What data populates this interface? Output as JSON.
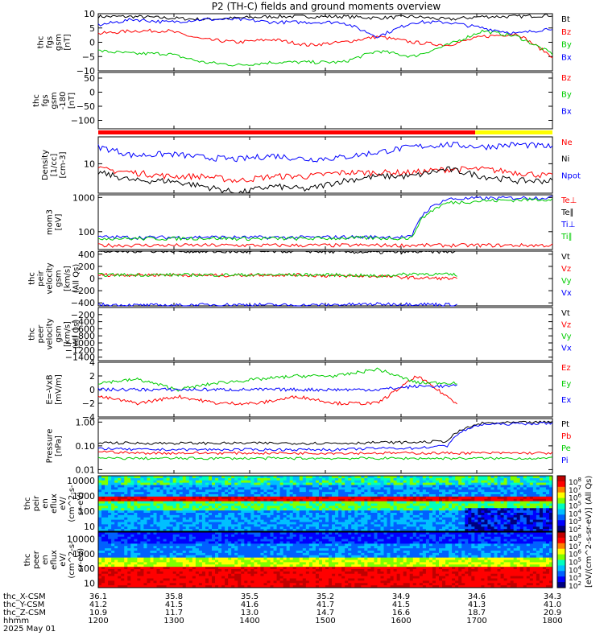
{
  "title": "P2 (TH-C) fields and ground moments overview",
  "chart_data": [
    {
      "type": "line",
      "panel": "fgs-gsm",
      "ylabel": [
        "thc",
        "fgs",
        "gsm",
        "[nT]"
      ],
      "ylim": [
        -10,
        10
      ],
      "yticks": [
        10,
        5,
        0,
        -5,
        -10
      ],
      "series": [
        {
          "name": "Bt",
          "color": "#000000",
          "values": [
            9,
            9,
            8.5,
            8,
            8.5,
            9,
            9,
            9,
            8.5,
            9,
            8,
            9,
            9,
            9.5
          ]
        },
        {
          "name": "Bz",
          "color": "#ff0000",
          "values": [
            3,
            4,
            4,
            1,
            0,
            1,
            -1,
            0,
            2,
            0,
            -1,
            2,
            3,
            -5
          ]
        },
        {
          "name": "By",
          "color": "#00cc00",
          "values": [
            -3,
            -4,
            -4,
            -7,
            -8,
            -7,
            -7,
            -7,
            -3,
            -5,
            -1,
            4,
            2,
            -4
          ]
        },
        {
          "name": "Bx",
          "color": "#0000ff",
          "values": [
            6,
            8,
            7,
            8,
            8,
            7,
            7,
            7,
            2,
            7,
            7,
            5,
            3,
            5
          ]
        }
      ]
    },
    {
      "type": "line",
      "panel": "fgs-gsm-180",
      "ylabel": [
        "thc",
        "fgs",
        "gsm",
        "-180",
        "[nT]"
      ],
      "ylim": [
        -130,
        70
      ],
      "yticks": [
        50,
        0,
        -50,
        -100
      ],
      "series": [
        {
          "name": "Bz",
          "color": "#ff0000",
          "values": []
        },
        {
          "name": "By",
          "color": "#00cc00",
          "values": []
        },
        {
          "name": "Bx",
          "color": "#0000ff",
          "values": []
        }
      ]
    },
    {
      "type": "line",
      "panel": "density",
      "ylabel": [
        "Density",
        "[1/cc]",
        "[cm-3]"
      ],
      "ylim": [
        3,
        30
      ],
      "log": true,
      "yticks": [
        10
      ],
      "series": [
        {
          "name": "Ne",
          "color": "#ff0000",
          "values": [
            8,
            7,
            6,
            6,
            5,
            6,
            6,
            7,
            7,
            7,
            8,
            8,
            7,
            6
          ]
        },
        {
          "name": "Ni",
          "color": "#000000",
          "values": [
            7,
            5,
            5,
            4,
            3,
            4,
            3.5,
            5,
            6,
            6,
            8,
            6,
            5,
            5
          ]
        },
        {
          "name": "Npot",
          "color": "#0000ff",
          "values": [
            20,
            14,
            15,
            13,
            12,
            14,
            12,
            13,
            16,
            20,
            22,
            20,
            22,
            20
          ]
        }
      ]
    },
    {
      "type": "line",
      "panel": "temperature",
      "ylabel": [
        "mom3",
        "[eV]"
      ],
      "ylim": [
        30,
        1200
      ],
      "log": true,
      "yticks": [
        1000,
        100
      ],
      "series": [
        {
          "name": "Te⊥",
          "color": "#ff0000",
          "values": [
            40,
            40,
            40,
            40,
            40,
            40,
            40,
            40,
            40,
            40,
            40,
            40,
            40,
            40
          ]
        },
        {
          "name": "Te∥",
          "color": "#000000",
          "values": []
        },
        {
          "name": "Ti⊥",
          "color": "#0000ff",
          "values": [
            70,
            68,
            68,
            70,
            68,
            68,
            68,
            70,
            70,
            70,
            900,
            950,
            980,
            1000
          ]
        },
        {
          "name": "Ti∥",
          "color": "#00cc00",
          "values": [
            65,
            63,
            63,
            65,
            63,
            63,
            63,
            65,
            65,
            65,
            700,
            800,
            850,
            900
          ]
        }
      ]
    },
    {
      "type": "line",
      "panel": "peir-velocity",
      "ylabel": [
        "thc",
        "peir",
        "velocity",
        "gsm",
        "[km/s]",
        "(All Qs)"
      ],
      "ylim": [
        -450,
        450
      ],
      "yticks": [
        400,
        200,
        0,
        -200,
        -400
      ],
      "series": [
        {
          "name": "Vt",
          "color": "#000000",
          "values": [
            440,
            450,
            450,
            440,
            440,
            450,
            440,
            430,
            440,
            440
          ]
        },
        {
          "name": "Vz",
          "color": "#ff0000",
          "values": [
            60,
            60,
            60,
            50,
            60,
            60,
            40,
            40,
            10,
            0
          ]
        },
        {
          "name": "Vy",
          "color": "#00cc00",
          "values": [
            60,
            60,
            60,
            60,
            60,
            60,
            60,
            40,
            80,
            60
          ]
        },
        {
          "name": "Vx",
          "color": "#0000ff",
          "values": [
            -430,
            -440,
            -440,
            -430,
            -430,
            -440,
            -430,
            -420,
            -420,
            -430
          ]
        }
      ]
    },
    {
      "type": "line",
      "panel": "peer-velocity",
      "ylabel": [
        "thc",
        "peer",
        "velocity",
        "gsm",
        "[km/s]",
        "(All Qs)"
      ],
      "ylim": [
        -1500,
        0
      ],
      "yticks": [
        -200,
        -400,
        -600,
        -800,
        -1000,
        -1200,
        -1400
      ],
      "series": [
        {
          "name": "Vt",
          "color": "#000000",
          "values": []
        },
        {
          "name": "Vz",
          "color": "#ff0000",
          "values": []
        },
        {
          "name": "Vy",
          "color": "#00cc00",
          "values": []
        },
        {
          "name": "Vx",
          "color": "#0000ff",
          "values": []
        }
      ]
    },
    {
      "type": "line",
      "panel": "efield",
      "ylabel": [
        "E=-VxB",
        "[mV/m]"
      ],
      "ylim": [
        -4,
        4
      ],
      "yticks": [
        4,
        2,
        0,
        -2,
        -4
      ],
      "series": [
        {
          "name": "Ez",
          "color": "#ff0000",
          "values": [
            -1,
            -2,
            -1,
            -2,
            -2,
            -1,
            -2,
            -2,
            2,
            -2
          ]
        },
        {
          "name": "Ey",
          "color": "#00cc00",
          "values": [
            1,
            1.5,
            0,
            1,
            1.5,
            2,
            2,
            3,
            1,
            1
          ]
        },
        {
          "name": "Ex",
          "color": "#0000ff",
          "values": [
            0,
            0,
            0,
            0,
            0,
            0,
            0,
            0,
            0.5,
            0.5
          ]
        }
      ]
    },
    {
      "type": "line",
      "panel": "pressure",
      "ylabel": [
        "Pressure",
        "[nPa]"
      ],
      "ylim": [
        0.007,
        1.4
      ],
      "log": true,
      "yticks": [
        1.0,
        0.1,
        0.01
      ],
      "ytick_labels": [
        "1.00",
        "0.10",
        "0.01"
      ],
      "series": [
        {
          "name": "Pt",
          "color": "#000000",
          "values": [
            0.14,
            0.13,
            0.13,
            0.13,
            0.13,
            0.13,
            0.13,
            0.13,
            0.14,
            0.14,
            0.16,
            0.9,
            0.95,
            1.0
          ]
        },
        {
          "name": "Pb",
          "color": "#ff0000",
          "values": [
            0.06,
            0.05,
            0.05,
            0.05,
            0.05,
            0.05,
            0.05,
            0.05,
            0.05,
            0.05,
            0.05,
            0.05,
            0.05,
            0.05
          ]
        },
        {
          "name": "Pe",
          "color": "#00cc00",
          "values": [
            0.03,
            0.03,
            0.03,
            0.03,
            0.03,
            0.03,
            0.03,
            0.03,
            0.03,
            0.03,
            0.03,
            0.03,
            0.03,
            0.03
          ]
        },
        {
          "name": "Pi",
          "color": "#0000ff",
          "values": [
            0.08,
            0.07,
            0.07,
            0.07,
            0.07,
            0.07,
            0.07,
            0.07,
            0.08,
            0.08,
            0.1,
            0.8,
            0.85,
            0.9
          ]
        }
      ]
    },
    {
      "type": "heatmap",
      "panel": "peir-eflux",
      "ylabel": [
        "thc",
        "peir",
        "en",
        "eflux",
        "eV/",
        "(cm^2-s-",
        "sr-eV)"
      ],
      "ylim": [
        5,
        20000
      ],
      "log": true,
      "yticks": [
        10000,
        1000,
        100,
        10
      ],
      "colorbar_ticks": [
        "10^8",
        "10^7",
        "10^6",
        "10^5",
        "10^4",
        "10^3",
        "10^2"
      ],
      "colorbar_label": "[eV/(cm^2-s-sr-eV)] (All Qs)"
    },
    {
      "type": "heatmap",
      "panel": "peer-eflux",
      "ylabel": [
        "thc",
        "peer",
        "en",
        "eflux",
        "eV/",
        "(cm^2-s-",
        "sr-eV)"
      ],
      "ylim": [
        5,
        30000
      ],
      "log": true,
      "yticks": [
        10000,
        1000,
        100,
        10
      ],
      "colorbar_ticks": [
        "10^8",
        "10^7",
        "10^6",
        "10^5",
        "10^4",
        "10^3",
        "10^2"
      ],
      "colorbar_label": "[eV/(cm^2-s-sr-eV)]"
    }
  ],
  "xaxis": {
    "rows": [
      {
        "label": "thc_X-CSM",
        "values": [
          "36.1",
          "35.8",
          "35.5",
          "35.2",
          "34.9",
          "34.6",
          "34.3"
        ]
      },
      {
        "label": "thc_Y-CSM",
        "values": [
          "41.2",
          "41.5",
          "41.6",
          "41.7",
          "41.5",
          "41.3",
          "41.0"
        ]
      },
      {
        "label": "thc_Z-CSM",
        "values": [
          "10.9",
          "11.7",
          "13.0",
          "14.7",
          "16.6",
          "18.7",
          "20.9"
        ]
      },
      {
        "label": "hhmm",
        "values": [
          "1200",
          "1300",
          "1400",
          "1500",
          "1600",
          "1700",
          "1800"
        ]
      }
    ],
    "date": "2025 May 01"
  }
}
